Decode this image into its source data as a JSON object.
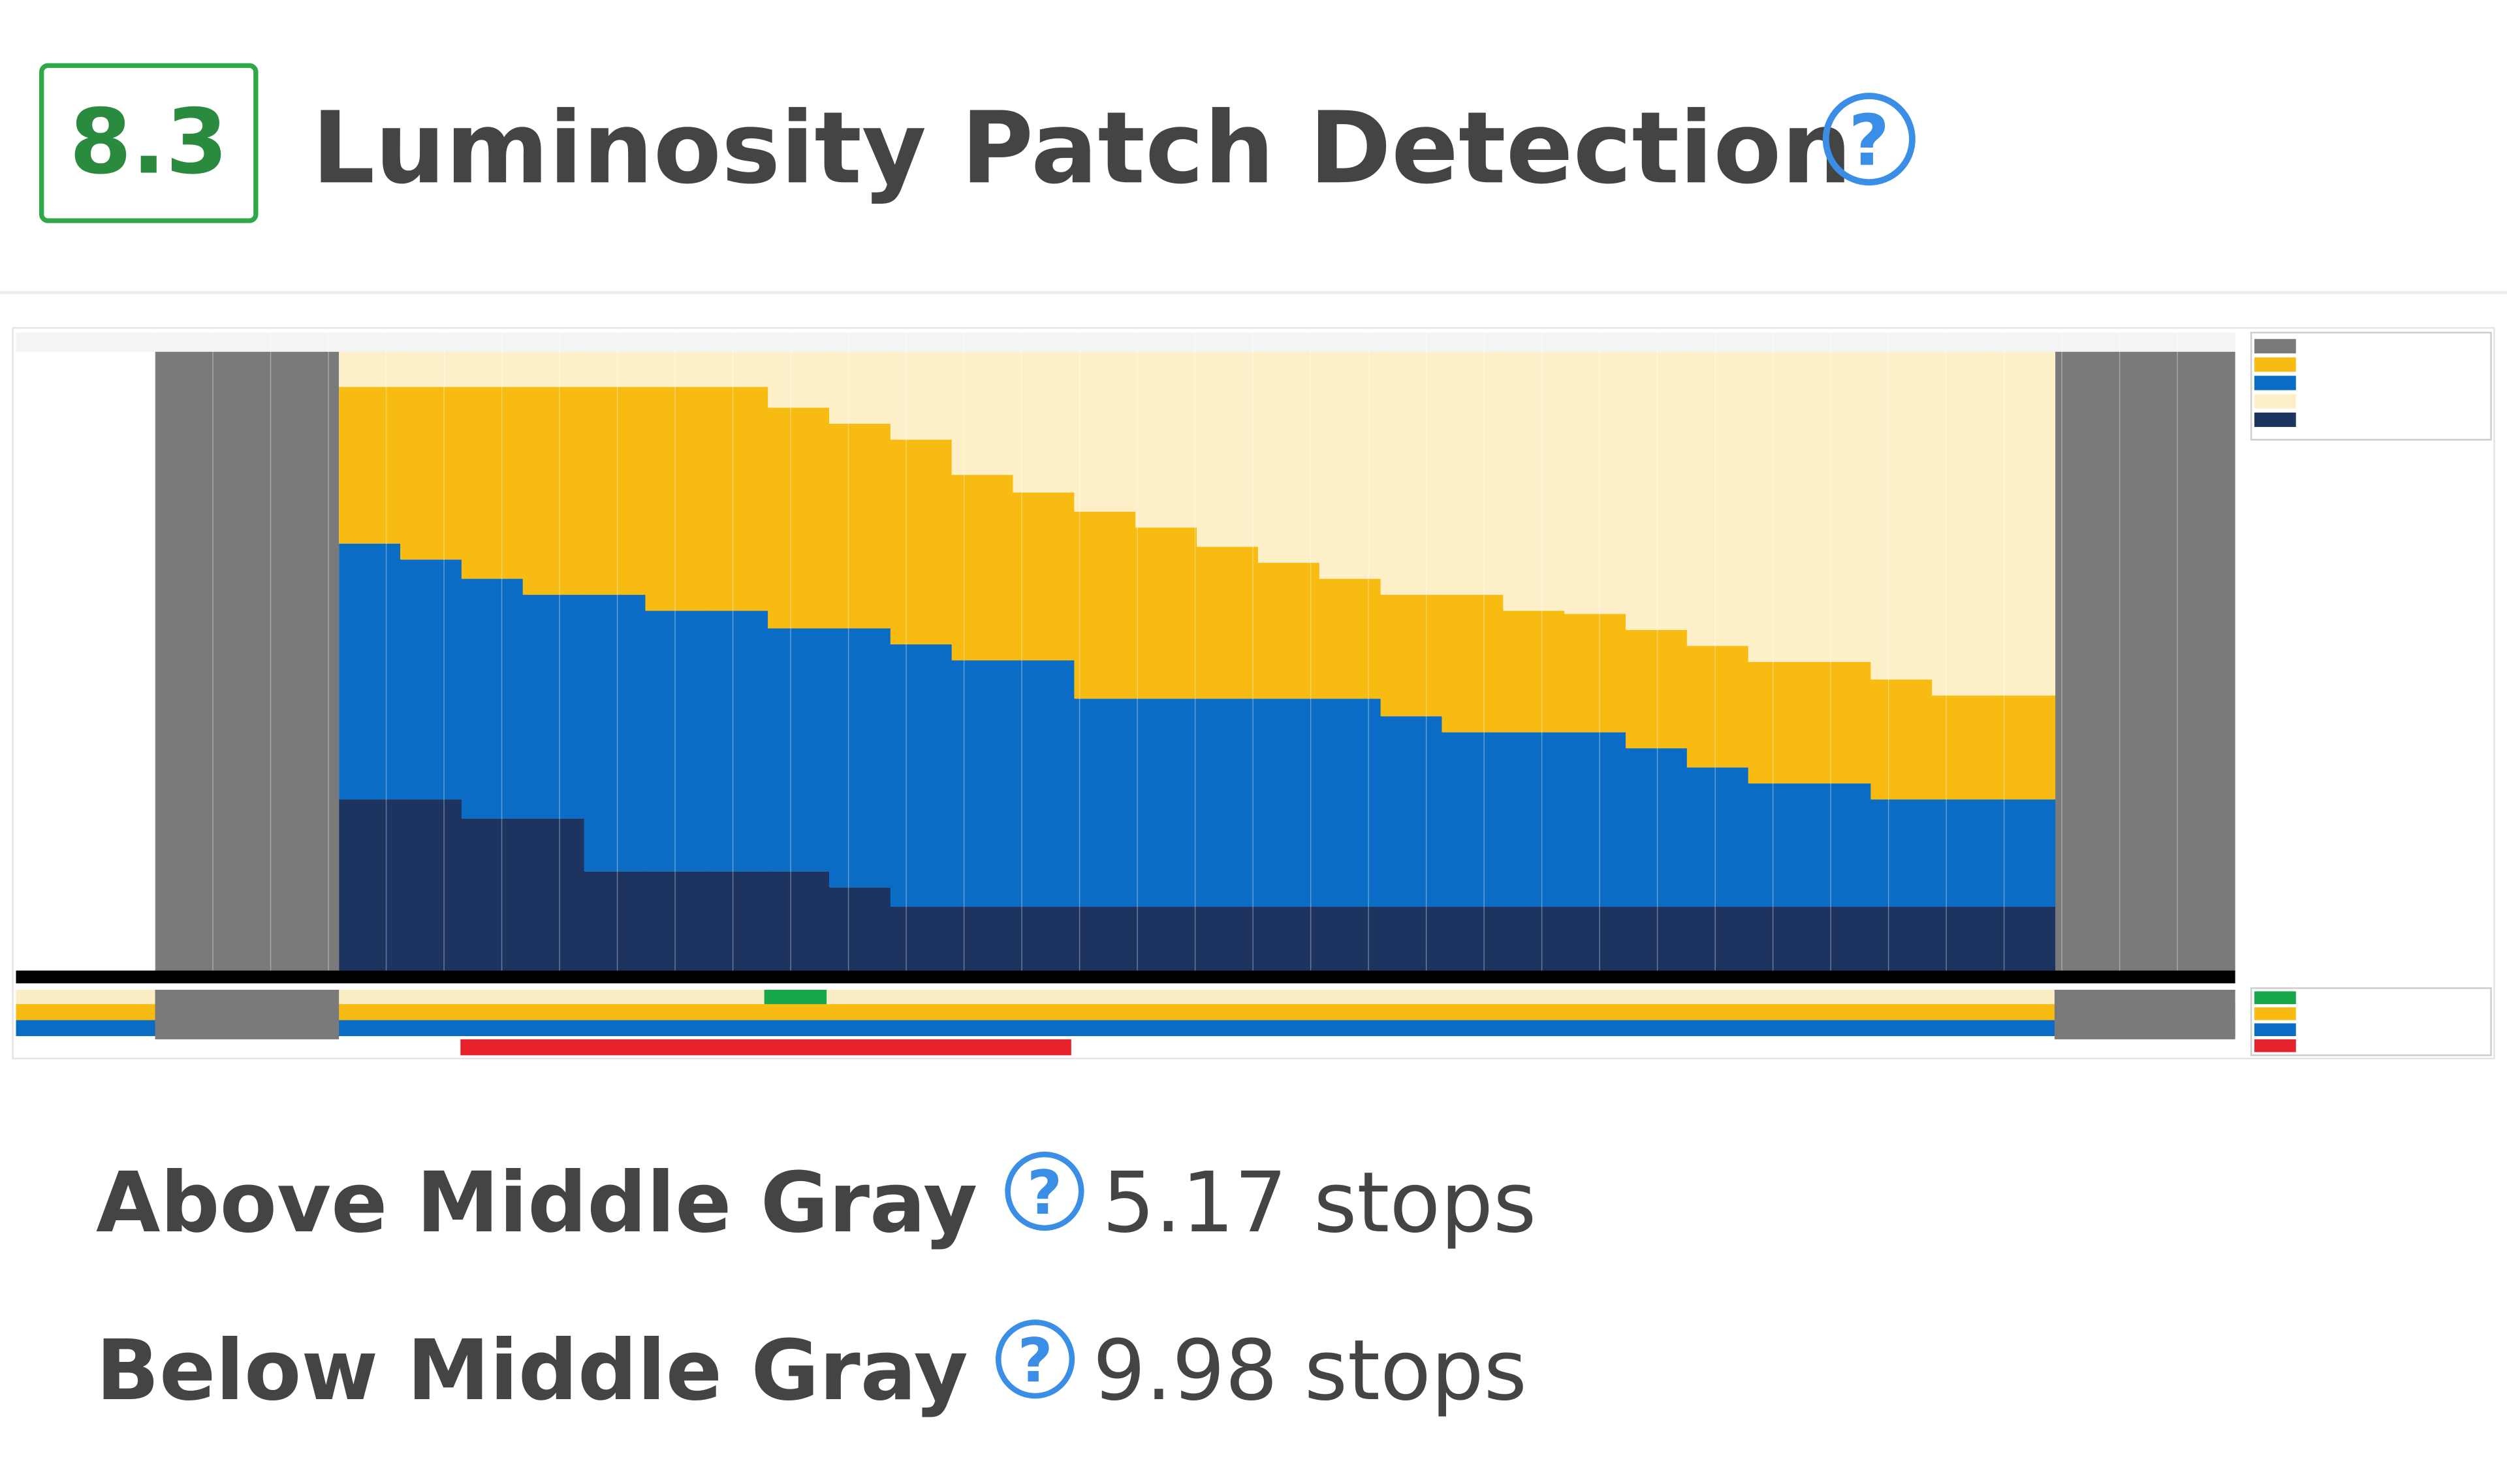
{
  "score": "8.3",
  "title": "Luminosity Patch Detection",
  "rows": [
    {
      "label": "Above Middle Gray",
      "value": "5.17 stops"
    },
    {
      "label": "Below Middle Gray",
      "value": "9.98 stops"
    }
  ]
}
